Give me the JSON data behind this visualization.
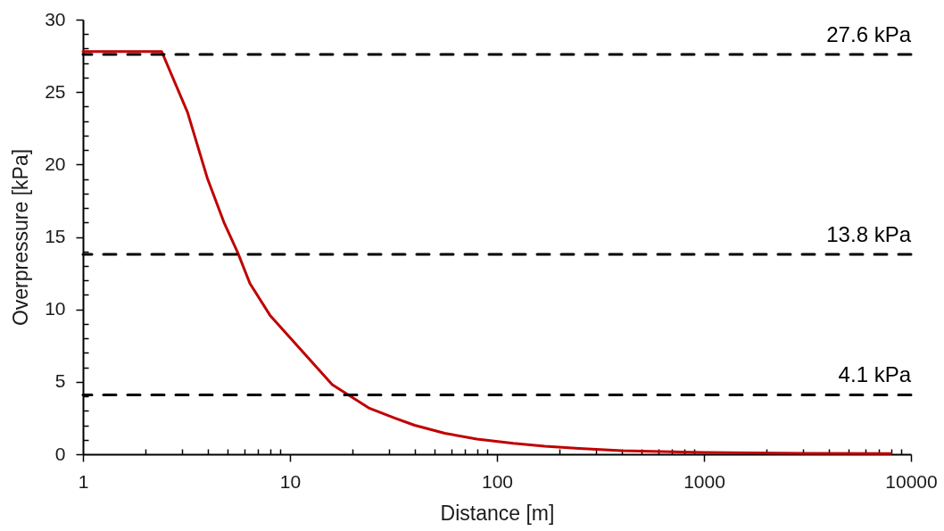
{
  "chart_data": {
    "type": "line",
    "xlabel": "Distance [m]",
    "ylabel": "Overpressure [kPa]",
    "x": [
      1,
      2.4,
      3.2,
      4,
      4.8,
      5.6,
      6.4,
      8,
      16,
      24,
      32,
      40,
      56,
      80,
      120,
      170,
      250,
      400,
      1000,
      3000,
      8000
    ],
    "series": [
      {
        "color": "#c00000",
        "values": [
          27.8,
          27.8,
          23.6,
          19.0,
          16.0,
          13.9,
          11.8,
          9.6,
          4.8,
          3.2,
          2.5,
          2.0,
          1.45,
          1.05,
          0.75,
          0.55,
          0.4,
          0.25,
          0.12,
          0.06,
          0.04
        ]
      }
    ],
    "log": "x",
    "xlim": [
      1,
      10000
    ],
    "xticks": [
      1,
      {
        "value": 2,
        "label": null
      },
      {
        "value": 3,
        "label": null
      },
      {
        "value": 4,
        "label": null
      },
      {
        "value": 5,
        "label": null
      },
      {
        "value": 6,
        "label": null
      },
      {
        "value": 7,
        "label": null
      },
      {
        "value": 8,
        "label": null
      },
      {
        "value": 9,
        "label": null
      },
      10,
      {
        "value": 20,
        "label": null
      },
      {
        "value": 30,
        "label": null
      },
      {
        "value": 40,
        "label": null
      },
      {
        "value": 50,
        "label": null
      },
      {
        "value": 60,
        "label": null
      },
      {
        "value": 70,
        "label": null
      },
      {
        "value": 80,
        "label": null
      },
      {
        "value": 90,
        "label": null
      },
      100,
      {
        "value": 200,
        "label": null
      },
      {
        "value": 300,
        "label": null
      },
      {
        "value": 400,
        "label": null
      },
      {
        "value": 500,
        "label": null
      },
      {
        "value": 600,
        "label": null
      },
      {
        "value": 700,
        "label": null
      },
      {
        "value": 800,
        "label": null
      },
      {
        "value": 900,
        "label": null
      },
      1000,
      {
        "value": 2000,
        "label": null
      },
      {
        "value": 3000,
        "label": null
      },
      {
        "value": 4000,
        "label": null
      },
      {
        "value": 5000,
        "label": null
      },
      {
        "value": 6000,
        "label": null
      },
      {
        "value": 7000,
        "label": null
      },
      {
        "value": 8000,
        "label": null
      },
      {
        "value": 9000,
        "label": null
      },
      10000
    ],
    "ylim": [
      0,
      30
    ],
    "yticks": [
      0,
      {
        "value": 1,
        "label": null
      },
      {
        "value": 2,
        "label": null
      },
      {
        "value": 3,
        "label": null
      },
      {
        "value": 4,
        "label": null
      },
      5,
      {
        "value": 6,
        "label": null
      },
      {
        "value": 7,
        "label": null
      },
      {
        "value": 8,
        "label": null
      },
      {
        "value": 9,
        "label": null
      },
      10,
      {
        "value": 11,
        "label": null
      },
      {
        "value": 12,
        "label": null
      },
      {
        "value": 13,
        "label": null
      },
      {
        "value": 14,
        "label": null
      },
      15,
      {
        "value": 16,
        "label": null
      },
      {
        "value": 17,
        "label": null
      },
      {
        "value": 18,
        "label": null
      },
      {
        "value": 19,
        "label": null
      },
      20,
      {
        "value": 21,
        "label": null
      },
      {
        "value": 22,
        "label": null
      },
      {
        "value": 23,
        "label": null
      },
      {
        "value": 24,
        "label": null
      },
      25,
      {
        "value": 26,
        "label": null
      },
      {
        "value": 27,
        "label": null
      },
      {
        "value": 28,
        "label": null
      },
      {
        "value": 29,
        "label": null
      },
      30
    ],
    "ref_lines": [
      {
        "axis": "y",
        "value": 27.6,
        "label": "27.6 kPa",
        "color": "#000000",
        "line_style": "dashed"
      },
      {
        "axis": "y",
        "value": 13.8,
        "label": "13.8 kPa",
        "color": "#000000",
        "line_style": "dashed"
      },
      {
        "axis": "y",
        "value": 4.1,
        "label": "4.1 kPa",
        "color": "#000000",
        "line_style": "dashed"
      }
    ],
    "marker": "none",
    "line_style": "solid"
  }
}
